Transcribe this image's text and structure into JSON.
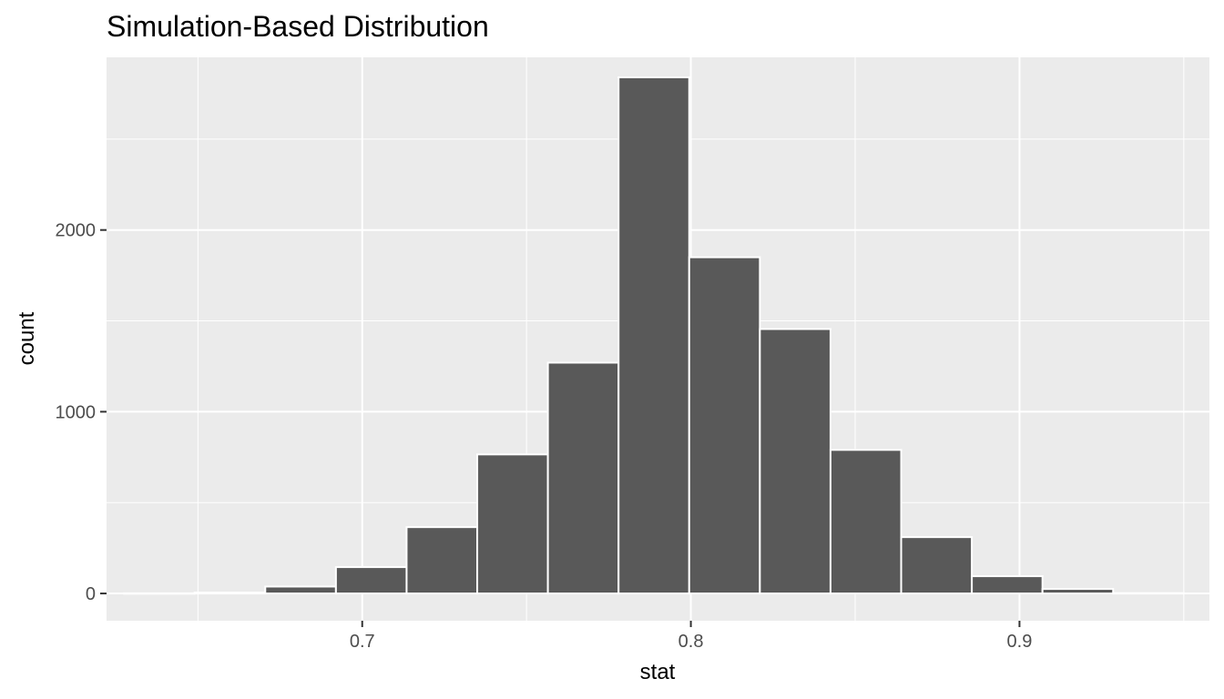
{
  "chart_data": {
    "type": "histogram",
    "title": "Simulation-Based Distribution",
    "xlabel": "stat",
    "ylabel": "count",
    "xlim": [
      0.6222,
      0.9578
    ],
    "ylim": [
      -150,
      2950
    ],
    "x_ticks": [
      {
        "value": 0.7,
        "label": "0.7"
      },
      {
        "value": 0.8,
        "label": "0.8"
      },
      {
        "value": 0.9,
        "label": "0.9"
      }
    ],
    "x_minor_ticks": [
      0.65,
      0.75,
      0.85,
      0.95
    ],
    "y_ticks": [
      {
        "value": 0,
        "label": "0"
      },
      {
        "value": 1000,
        "label": "1000"
      },
      {
        "value": 2000,
        "label": "2000"
      }
    ],
    "y_minor_ticks": [
      500,
      1500,
      2500
    ],
    "grid": true,
    "bins": [
      {
        "x0": 0.6275,
        "x1": 0.649,
        "count": 1
      },
      {
        "x0": 0.649,
        "x1": 0.6705,
        "count": 5
      },
      {
        "x0": 0.6705,
        "x1": 0.692,
        "count": 38
      },
      {
        "x0": 0.692,
        "x1": 0.7135,
        "count": 145
      },
      {
        "x0": 0.7135,
        "x1": 0.735,
        "count": 365
      },
      {
        "x0": 0.735,
        "x1": 0.7565,
        "count": 765
      },
      {
        "x0": 0.7565,
        "x1": 0.778,
        "count": 1270
      },
      {
        "x0": 0.778,
        "x1": 0.7995,
        "count": 2840
      },
      {
        "x0": 0.7995,
        "x1": 0.821,
        "count": 1850
      },
      {
        "x0": 0.821,
        "x1": 0.8425,
        "count": 1455
      },
      {
        "x0": 0.8425,
        "x1": 0.864,
        "count": 790
      },
      {
        "x0": 0.864,
        "x1": 0.8855,
        "count": 310
      },
      {
        "x0": 0.8855,
        "x1": 0.907,
        "count": 95
      },
      {
        "x0": 0.907,
        "x1": 0.9285,
        "count": 25
      },
      {
        "x0": 0.9285,
        "x1": 0.95,
        "count": 2
      }
    ],
    "colors": {
      "panel_background": "#ebebeb",
      "grid": "#ffffff",
      "bar_fill": "#595959",
      "bar_outline": "#ffffff",
      "tick_text": "#4d4d4d",
      "axis_title": "#000000"
    }
  }
}
